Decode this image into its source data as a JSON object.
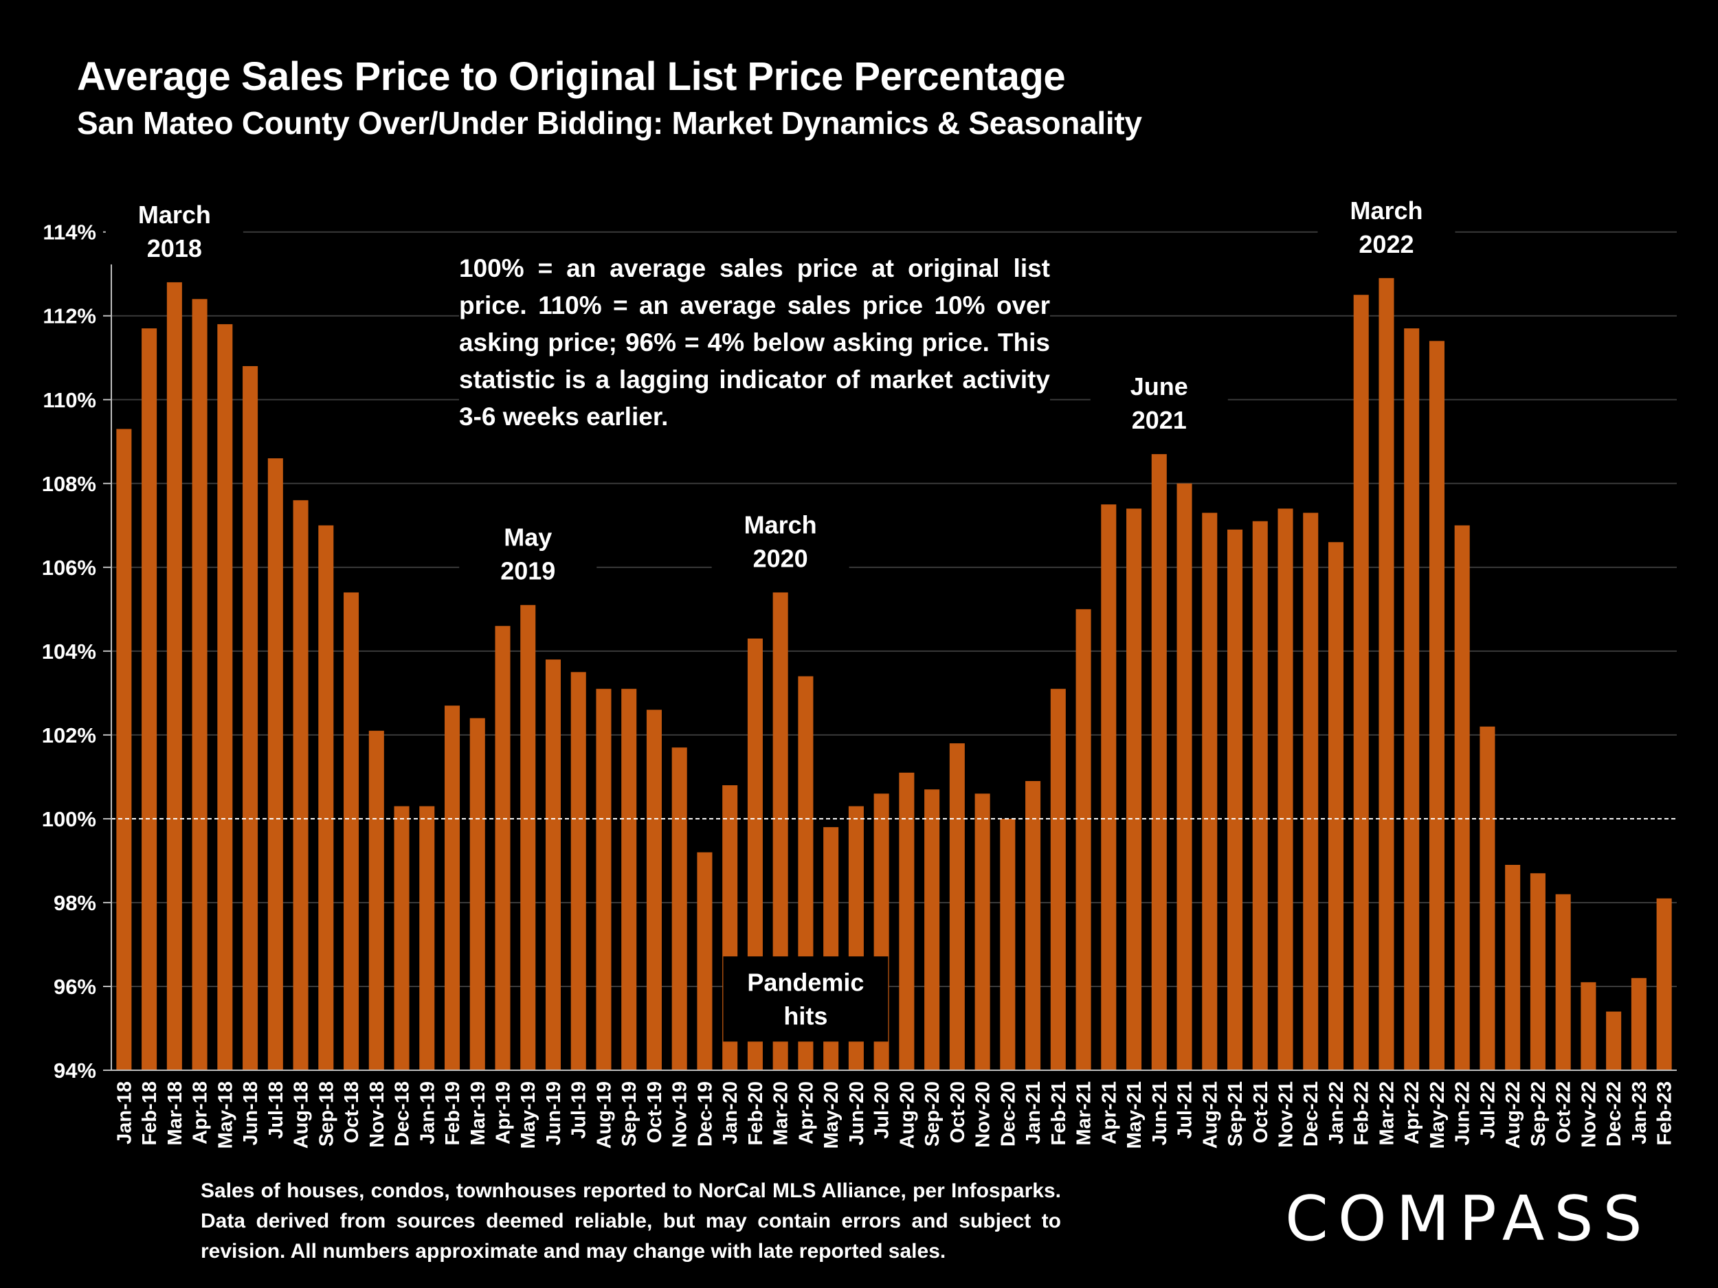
{
  "page": {
    "title": "Average Sales Price to Original List Price Percentage",
    "subtitle": "San Mateo County Over/Under Bidding: Market Dynamics & Seasonality",
    "info_box": "100% = an average sales price at original list price. 110% = an average sales price 10% over asking price; 96% = 4% below asking price. This statistic is a lagging indicator of market activity 3-6 weeks earlier.",
    "footnote": "Sales of houses, condos, townhouses reported to NorCal MLS Alliance, per Infosparks. Data derived from sources deemed reliable, but may contain errors and subject to revision. All numbers approximate and may change with late reported sales.",
    "logo": "COMPASS"
  },
  "chart_data": {
    "type": "bar",
    "title": "Average Sales Price to Original List Price Percentage",
    "subtitle": "San Mateo County Over/Under Bidding: Market Dynamics & Seasonality",
    "ylim": [
      94,
      114.7
    ],
    "yticks": [
      94,
      96,
      98,
      100,
      102,
      104,
      106,
      108,
      110,
      112,
      114
    ],
    "ytick_labels": [
      "94%",
      "96%",
      "98%",
      "100%",
      "102%",
      "104%",
      "106%",
      "108%",
      "110%",
      "112%",
      "114%"
    ],
    "reference_line": 100,
    "grid": true,
    "bar_color": "#c55a11",
    "categories": [
      "Jan-18",
      "Feb-18",
      "Mar-18",
      "Apr-18",
      "May-18",
      "Jun-18",
      "Jul-18",
      "Aug-18",
      "Sep-18",
      "Oct-18",
      "Nov-18",
      "Dec-18",
      "Jan-19",
      "Feb-19",
      "Mar-19",
      "Apr-19",
      "May-19",
      "Jun-19",
      "Jul-19",
      "Aug-19",
      "Sep-19",
      "Oct-19",
      "Nov-19",
      "Dec-19",
      "Jan-20",
      "Feb-20",
      "Mar-20",
      "Apr-20",
      "May-20",
      "Jun-20",
      "Jul-20",
      "Aug-20",
      "Sep-20",
      "Oct-20",
      "Nov-20",
      "Dec-20",
      "Jan-21",
      "Feb-21",
      "Mar-21",
      "Apr-21",
      "May-21",
      "Jun-21",
      "Jul-21",
      "Aug-21",
      "Sep-21",
      "Oct-21",
      "Nov-21",
      "Dec-21",
      "Jan-22",
      "Feb-22",
      "Mar-22",
      "Apr-22",
      "May-22",
      "Jun-22",
      "Jul-22",
      "Aug-22",
      "Sep-22",
      "Oct-22",
      "Nov-22",
      "Dec-22",
      "Jan-23",
      "Feb-23"
    ],
    "values": [
      109.3,
      111.7,
      112.8,
      112.4,
      111.8,
      110.8,
      108.6,
      107.6,
      107.0,
      105.4,
      102.1,
      100.3,
      100.3,
      102.7,
      102.4,
      104.6,
      105.1,
      103.8,
      103.5,
      103.1,
      103.1,
      102.6,
      101.7,
      99.2,
      100.8,
      104.3,
      105.4,
      103.4,
      99.8,
      100.3,
      100.6,
      101.1,
      100.7,
      101.8,
      100.6,
      100.0,
      100.9,
      103.1,
      105.0,
      107.5,
      107.4,
      108.7,
      108.0,
      107.3,
      106.9,
      107.1,
      107.4,
      107.3,
      106.6,
      112.5,
      112.9,
      111.7,
      111.4,
      107.0,
      102.2,
      98.9,
      98.7,
      98.2,
      96.1,
      95.4,
      96.2,
      98.1
    ],
    "annotations": [
      {
        "lines": [
          "March",
          "2018"
        ],
        "category": "Mar-18"
      },
      {
        "lines": [
          "May",
          "2019"
        ],
        "category": "May-19"
      },
      {
        "lines": [
          "March",
          "2020"
        ],
        "category": "Mar-20"
      },
      {
        "lines": [
          "June",
          "2021"
        ],
        "category": "Jun-21"
      },
      {
        "lines": [
          "March",
          "2022"
        ],
        "category": "Mar-22"
      },
      {
        "lines": [
          "Pandemic",
          "hits"
        ],
        "category": "Apr-20",
        "boxed": true,
        "value": 95.7
      }
    ]
  }
}
